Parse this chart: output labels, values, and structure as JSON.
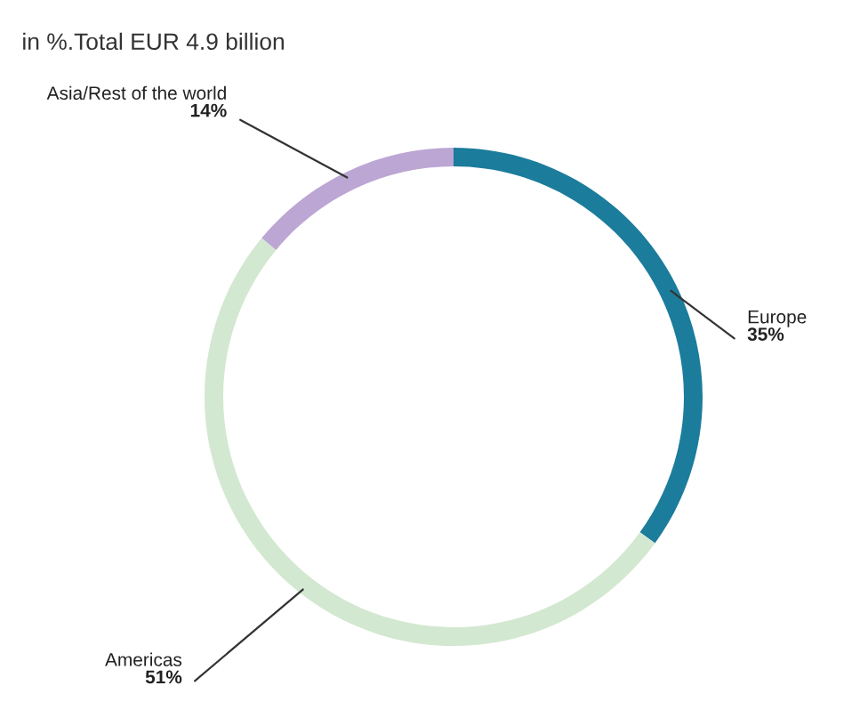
{
  "chart_data": {
    "type": "donut",
    "title": "in %.Total EUR 4.9 billion",
    "categories": [
      "Europe",
      "Americas",
      "Asia/Rest of the world"
    ],
    "values": [
      35,
      51,
      14
    ],
    "colors": [
      "#1b7c9c",
      "#d3e8d0",
      "#bca6d4"
    ],
    "value_labels": [
      "35%",
      "51%",
      "14%"
    ],
    "legend": false
  }
}
